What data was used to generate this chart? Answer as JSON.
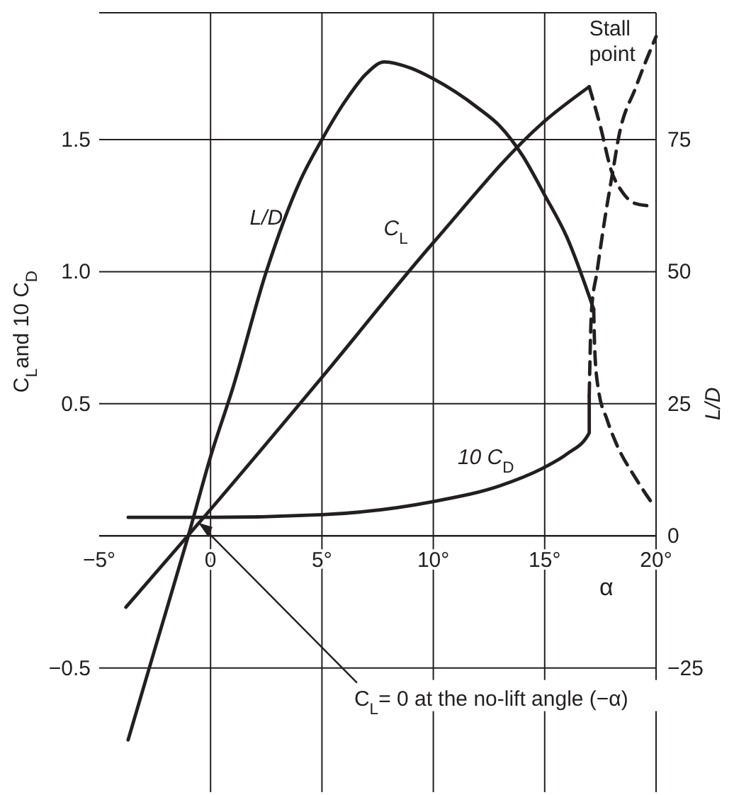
{
  "chart_data": {
    "type": "line",
    "xlabel": "α",
    "ylabel": "C$_{L}$and 10 C$_{D}$",
    "y2label": "L/D",
    "xlim": [
      -5,
      20
    ],
    "ylim": [
      -0.97,
      1.98
    ],
    "y2lim": [
      -48.5,
      99
    ],
    "xticks": [
      {
        "value": -5,
        "label": "−5°"
      },
      {
        "value": 0,
        "label": "0"
      },
      {
        "value": 5,
        "label": "5°"
      },
      {
        "value": 10,
        "label": "10°"
      },
      {
        "value": 15,
        "label": "15°"
      },
      {
        "value": 20,
        "label": "20°"
      }
    ],
    "yticks": [
      {
        "value": -0.5,
        "label": "−0.5"
      },
      {
        "value": 0.5,
        "label": "0.5"
      },
      {
        "value": 1,
        "label": "1.0"
      },
      {
        "value": 1.5,
        "label": "1.5"
      }
    ],
    "y2ticks": [
      {
        "value": -25,
        "label": "−25"
      },
      0,
      25,
      50,
      75
    ],
    "grid": true,
    "marker": "none",
    "series": [
      {
        "name": "C$_{L}$",
        "color": "#231f20",
        "line_style": "solid",
        "x": [
          -3.8,
          0,
          5,
          10,
          15,
          17
        ],
        "values": [
          -0.27,
          0.1,
          0.6,
          1.11,
          1.57,
          1.7
        ]
      },
      {
        "color": "#231f20",
        "line_style": "dashed",
        "x": [
          17,
          17.5,
          18,
          18.5,
          19,
          19.6
        ],
        "values": [
          1.7,
          1.55,
          1.38,
          1.3,
          1.26,
          1.25
        ]
      },
      {
        "name": "10 C$_{D}$",
        "color": "#231f20",
        "line_style": "solid",
        "x": [
          -3.7,
          0,
          5,
          10,
          13,
          15,
          16,
          17,
          17
        ],
        "values": [
          0.07,
          0.07,
          0.08,
          0.13,
          0.19,
          0.26,
          0.31,
          0.39,
          0.53
        ]
      },
      {
        "color": "#231f20",
        "line_style": "dashed",
        "x": [
          17,
          17.1,
          17.35,
          17.7,
          18.1,
          18.3,
          19.1,
          20
        ],
        "values": [
          0.53,
          0.85,
          1.0,
          1.2,
          1.4,
          1.5,
          1.7,
          1.89
        ]
      },
      {
        "name": "L/D",
        "axis": "y2",
        "color": "#231f20",
        "line_style": "solid",
        "x": [
          -3.7,
          -2.5,
          -1,
          0,
          1,
          2.5,
          4,
          5,
          6,
          7,
          7.8,
          9,
          10,
          11,
          12,
          13,
          14,
          15,
          16,
          17.2
        ],
        "values": [
          -38.6,
          -21.4,
          0,
          15,
          28,
          50,
          67,
          75,
          82,
          87.5,
          89.7,
          88.5,
          86.5,
          84,
          81,
          77.5,
          72,
          64.5,
          56.5,
          42.9
        ]
      },
      {
        "axis": "y2",
        "color": "#231f20",
        "line_style": "dashed",
        "x": [
          17.2,
          17.25,
          17.4,
          17.8,
          18.2,
          19.1,
          19.9
        ],
        "values": [
          42.9,
          35,
          28,
          22,
          17.6,
          10.8,
          5.7
        ]
      }
    ],
    "annotations": [
      {
        "text": "Stall point",
        "x": 17,
        "y": 1.7
      },
      {
        "text": "C$_{L}$= 0 at the no-lift angle (−α)",
        "x": -0.55,
        "y": 0.05
      }
    ]
  }
}
